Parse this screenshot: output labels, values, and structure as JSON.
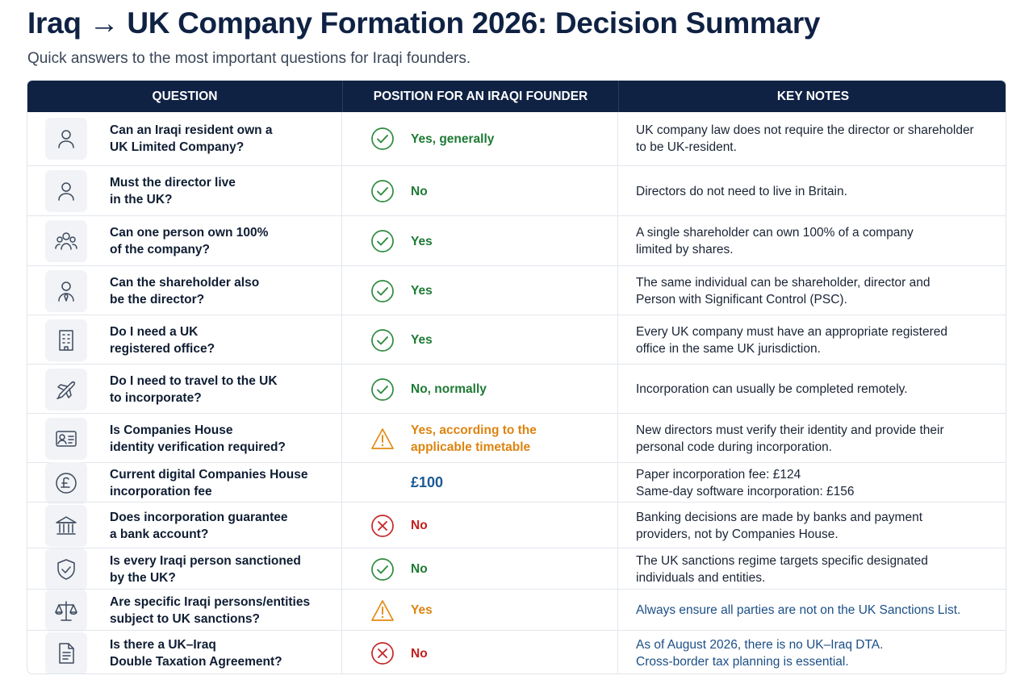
{
  "title": "Iraq → UK Company Formation 2026: Decision Summary",
  "subtitle": "Quick answers to the most important questions for Iraqi founders.",
  "headers": {
    "question": "QUESTION",
    "position": "POSITION FOR AN IRAQI FOUNDER",
    "notes": "KEY NOTES"
  },
  "colors": {
    "header_bg": "#0f2244",
    "yes_green": "#1e7a34",
    "warning_orange": "#dd8410",
    "no_red": "#c2201d",
    "fee_blue": "#1b5a96"
  },
  "rows": [
    {
      "icon": "person-icon",
      "question": "Can an Iraqi resident own a\nUK Limited Company?",
      "status_icon": "check-circle-icon",
      "position": "Yes, generally",
      "tone": "green",
      "note": "UK company law does not require the director or shareholder\nto be UK-resident.",
      "note_tone": ""
    },
    {
      "icon": "person-icon",
      "question": "Must the director live\nin the UK?",
      "status_icon": "check-circle-icon",
      "position": "No",
      "tone": "green",
      "note": "Directors do not need to live in Britain.",
      "note_tone": ""
    },
    {
      "icon": "group-icon",
      "question": "Can one person own 100%\nof the company?",
      "status_icon": "check-circle-icon",
      "position": "Yes",
      "tone": "green",
      "note": "A single shareholder can own 100% of a company\nlimited by shares.",
      "note_tone": ""
    },
    {
      "icon": "person-tie-icon",
      "question": "Can the shareholder also\nbe the director?",
      "status_icon": "check-circle-icon",
      "position": "Yes",
      "tone": "green",
      "note": "The same individual can be shareholder, director and\nPerson with Significant Control (PSC).",
      "note_tone": ""
    },
    {
      "icon": "building-icon",
      "question": "Do I need a UK\nregistered office?",
      "status_icon": "check-circle-icon",
      "position": "Yes",
      "tone": "green",
      "note": "Every UK company must have an appropriate registered\noffice in the same UK jurisdiction.",
      "note_tone": ""
    },
    {
      "icon": "airplane-icon",
      "question": "Do I need to travel to the UK\nto incorporate?",
      "status_icon": "check-circle-icon",
      "position": "No, normally",
      "tone": "green",
      "note": "Incorporation can usually be completed remotely.",
      "note_tone": ""
    },
    {
      "icon": "id-card-icon",
      "question": "Is Companies House\nidentity verification required?",
      "status_icon": "warning-triangle-icon",
      "position": "Yes, according to the\napplicable timetable",
      "tone": "orange",
      "note": "New directors must verify their identity and provide their\npersonal code during incorporation.",
      "note_tone": ""
    },
    {
      "icon": "pound-coin-icon",
      "question": "Current digital Companies House\nincorporation fee",
      "status_icon": "",
      "position": "£100",
      "tone": "blue",
      "note": "Paper incorporation fee:  £124\nSame-day software incorporation:  £156",
      "note_tone": ""
    },
    {
      "icon": "bank-icon",
      "question": "Does incorporation guarantee\na bank account?",
      "status_icon": "x-circle-icon",
      "position": "No",
      "tone": "red",
      "note": "Banking decisions are made by banks and payment\nproviders, not by Companies House.",
      "note_tone": ""
    },
    {
      "icon": "shield-check-icon",
      "question": "Is every Iraqi person sanctioned\nby the UK?",
      "status_icon": "check-circle-icon",
      "position": "No",
      "tone": "green",
      "note": "The UK sanctions regime targets specific designated\nindividuals and entities.",
      "note_tone": ""
    },
    {
      "icon": "scales-icon",
      "question": "Are specific Iraqi persons/entities\nsubject to UK sanctions?",
      "status_icon": "warning-triangle-icon",
      "position": "Yes",
      "tone": "orange",
      "note": "Always ensure all parties are not on the UK Sanctions List.",
      "note_tone": "blue"
    },
    {
      "icon": "document-icon",
      "question": "Is there a UK–Iraq\nDouble Taxation Agreement?",
      "status_icon": "x-circle-icon",
      "position": "No",
      "tone": "red",
      "note": "As of August 2026, there is no UK–Iraq DTA.\nCross-border tax planning is essential.",
      "note_tone": "blue"
    }
  ]
}
